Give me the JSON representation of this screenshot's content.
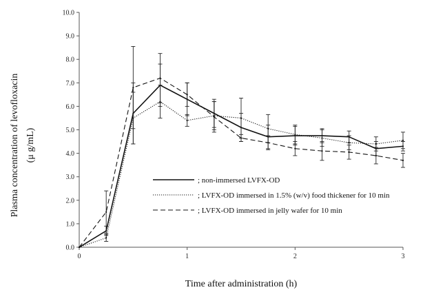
{
  "chart_data": {
    "type": "line",
    "xlabel": "Time after administration (h)",
    "ylabel": "Plasma concentration of levofloxacin",
    "ylabel_unit": "(μ g/mL)",
    "xlim": [
      0,
      3
    ],
    "ylim": [
      0,
      10
    ],
    "x_ticks": [
      "0",
      "1",
      "2",
      "3"
    ],
    "y_ticks": [
      "0.0",
      "1.0",
      "2.0",
      "3.0",
      "4.0",
      "5.0",
      "6.0",
      "7.0",
      "8.0",
      "9.0",
      "10.0"
    ],
    "grid": false,
    "legend_position": "inside-bottom-right",
    "x": [
      0,
      0.25,
      0.5,
      0.75,
      1,
      1.25,
      1.5,
      1.75,
      2,
      2.25,
      2.5,
      2.75,
      3
    ],
    "series": [
      {
        "name": "; non-immersed LVFX-OD",
        "style": "solid",
        "values": [
          0,
          0.7,
          5.7,
          6.9,
          6.3,
          5.7,
          5.1,
          4.7,
          4.75,
          4.75,
          4.7,
          4.2,
          4.3
        ],
        "errors": [
          0,
          0.2,
          1.3,
          0.9,
          0.7,
          0.6,
          0.6,
          0.5,
          0.4,
          0.3,
          0.25,
          0.3,
          0.2
        ]
      },
      {
        "name": "; LVFX-OD immersed in 1.5% (w/v) food thickener for 10 min",
        "style": "dotted",
        "values": [
          0,
          0.4,
          5.5,
          6.2,
          5.4,
          5.6,
          5.5,
          5.05,
          4.8,
          4.65,
          4.45,
          4.4,
          4.55
        ],
        "errors": [
          0,
          0.15,
          1.1,
          0.7,
          0.25,
          0.6,
          0.85,
          0.6,
          0.4,
          0.35,
          0.3,
          0.3,
          0.35
        ]
      },
      {
        "name": "; LVFX-OD immersed in jelly wafer for 10 min",
        "style": "dashed",
        "values": [
          0,
          1.5,
          6.8,
          7.2,
          6.5,
          5.55,
          4.65,
          4.45,
          4.2,
          4.1,
          4.05,
          3.9,
          3.7
        ],
        "errors": [
          0,
          0.9,
          1.75,
          1.05,
          0.5,
          0.65,
          0.15,
          0.3,
          0.3,
          0.4,
          0.3,
          0.35,
          0.3
        ]
      }
    ]
  }
}
